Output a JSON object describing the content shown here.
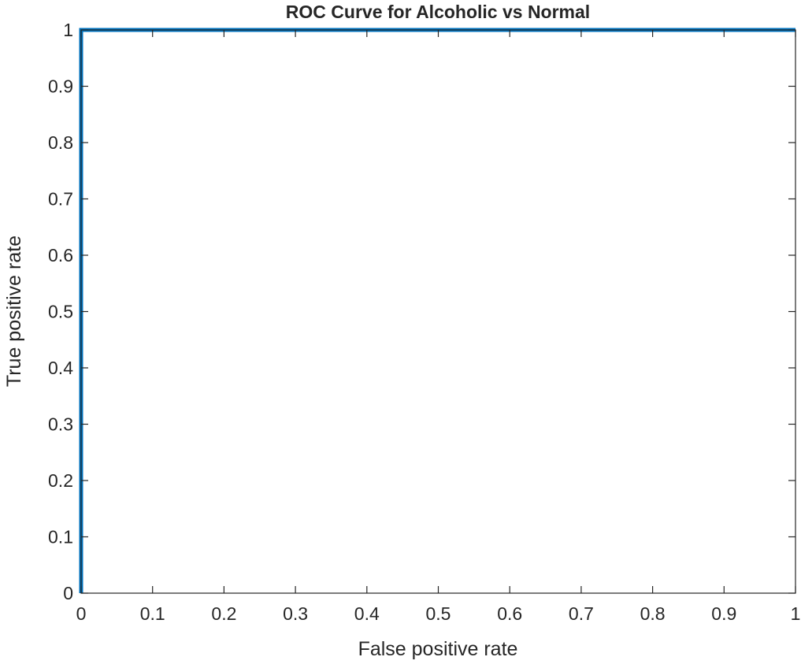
{
  "chart_data": {
    "type": "line",
    "title": "ROC Curve for Alcoholic vs Normal",
    "xlabel": "False positive rate",
    "ylabel": "True positive rate",
    "xlim": [
      0,
      1
    ],
    "ylim": [
      0,
      1
    ],
    "grid": false,
    "x_ticks": [
      "0",
      "0.1",
      "0.2",
      "0.3",
      "0.4",
      "0.5",
      "0.6",
      "0.7",
      "0.8",
      "0.9",
      "1"
    ],
    "y_ticks": [
      "0",
      "0.1",
      "0.2",
      "0.3",
      "0.4",
      "0.5",
      "0.6",
      "0.7",
      "0.8",
      "0.9",
      "1"
    ],
    "series": [
      {
        "color": "#0072bd",
        "points": [
          [
            0,
            0
          ],
          [
            0,
            1
          ],
          [
            1,
            1
          ]
        ]
      }
    ]
  }
}
